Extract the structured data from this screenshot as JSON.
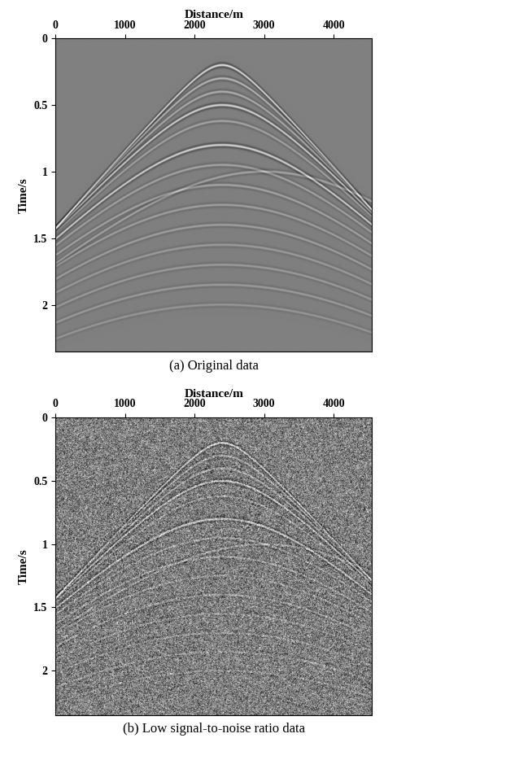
{
  "chart_data": [
    {
      "type": "seismic_image",
      "title": "(a) Original data",
      "x_label": "Distance/m",
      "y_label": "Time/s",
      "xlim": [
        0,
        4550
      ],
      "xticks": [
        0,
        1000,
        2000,
        3000,
        4000
      ],
      "ylim": [
        0,
        2.35
      ],
      "yticks": [
        0,
        0.5,
        1,
        1.5,
        2
      ],
      "color": "gray",
      "noise_std": 0,
      "events": [
        {
          "x0": 2400,
          "t0": 0.2,
          "velocity": 1700,
          "amplitude": 1.0
        },
        {
          "x0": 2400,
          "t0": 0.3,
          "velocity": 1720,
          "amplitude": 0.6
        },
        {
          "x0": 2400,
          "t0": 0.4,
          "velocity": 1750,
          "amplitude": 0.5
        },
        {
          "x0": 2400,
          "t0": 0.5,
          "velocity": 1780,
          "amplitude": 0.9
        },
        {
          "x0": 2400,
          "t0": 0.62,
          "velocity": 1820,
          "amplitude": 0.4
        },
        {
          "x0": 2400,
          "t0": 0.8,
          "velocity": 1880,
          "amplitude": 0.9
        },
        {
          "x0": 2400,
          "t0": 0.95,
          "velocity": 1950,
          "amplitude": 0.4
        },
        {
          "x0": 2400,
          "t0": 1.1,
          "velocity": 2000,
          "amplitude": 0.4
        },
        {
          "x0": 2400,
          "t0": 1.25,
          "velocity": 2050,
          "amplitude": 0.35
        },
        {
          "x0": 2400,
          "t0": 1.4,
          "velocity": 2100,
          "amplitude": 0.35
        },
        {
          "x0": 2400,
          "t0": 1.55,
          "velocity": 2150,
          "amplitude": 0.3
        },
        {
          "x0": 2400,
          "t0": 1.7,
          "velocity": 2200,
          "amplitude": 0.3
        },
        {
          "x0": 2400,
          "t0": 1.85,
          "velocity": 2250,
          "amplitude": 0.3
        },
        {
          "x0": 2400,
          "t0": 2.0,
          "velocity": 2300,
          "amplitude": 0.25
        },
        {
          "x0": 3000,
          "t0": 1.0,
          "velocity": 2200,
          "amplitude": 0.4
        }
      ]
    },
    {
      "type": "seismic_image",
      "title": "(b) Low signal-to-noise ratio data",
      "x_label": "Distance/m",
      "y_label": "Time/s",
      "xlim": [
        0,
        4550
      ],
      "xticks": [
        0,
        1000,
        2000,
        3000,
        4000
      ],
      "ylim": [
        0,
        2.35
      ],
      "yticks": [
        0,
        0.5,
        1,
        1.5,
        2
      ],
      "color": "gray",
      "noise_std": 0.6,
      "events": [
        {
          "x0": 2400,
          "t0": 0.2,
          "velocity": 1700,
          "amplitude": 1.0
        },
        {
          "x0": 2400,
          "t0": 0.3,
          "velocity": 1720,
          "amplitude": 0.6
        },
        {
          "x0": 2400,
          "t0": 0.4,
          "velocity": 1750,
          "amplitude": 0.5
        },
        {
          "x0": 2400,
          "t0": 0.5,
          "velocity": 1780,
          "amplitude": 0.9
        },
        {
          "x0": 2400,
          "t0": 0.62,
          "velocity": 1820,
          "amplitude": 0.4
        },
        {
          "x0": 2400,
          "t0": 0.8,
          "velocity": 1880,
          "amplitude": 0.9
        },
        {
          "x0": 2400,
          "t0": 0.95,
          "velocity": 1950,
          "amplitude": 0.4
        },
        {
          "x0": 2400,
          "t0": 1.1,
          "velocity": 2000,
          "amplitude": 0.4
        },
        {
          "x0": 2400,
          "t0": 1.25,
          "velocity": 2050,
          "amplitude": 0.35
        },
        {
          "x0": 2400,
          "t0": 1.4,
          "velocity": 2100,
          "amplitude": 0.35
        },
        {
          "x0": 2400,
          "t0": 1.55,
          "velocity": 2150,
          "amplitude": 0.3
        },
        {
          "x0": 2400,
          "t0": 1.7,
          "velocity": 2200,
          "amplitude": 0.3
        },
        {
          "x0": 2400,
          "t0": 1.85,
          "velocity": 2250,
          "amplitude": 0.3
        },
        {
          "x0": 2400,
          "t0": 2.0,
          "velocity": 2300,
          "amplitude": 0.25
        },
        {
          "x0": 3000,
          "t0": 1.0,
          "velocity": 2200,
          "amplitude": 0.4
        }
      ]
    }
  ]
}
